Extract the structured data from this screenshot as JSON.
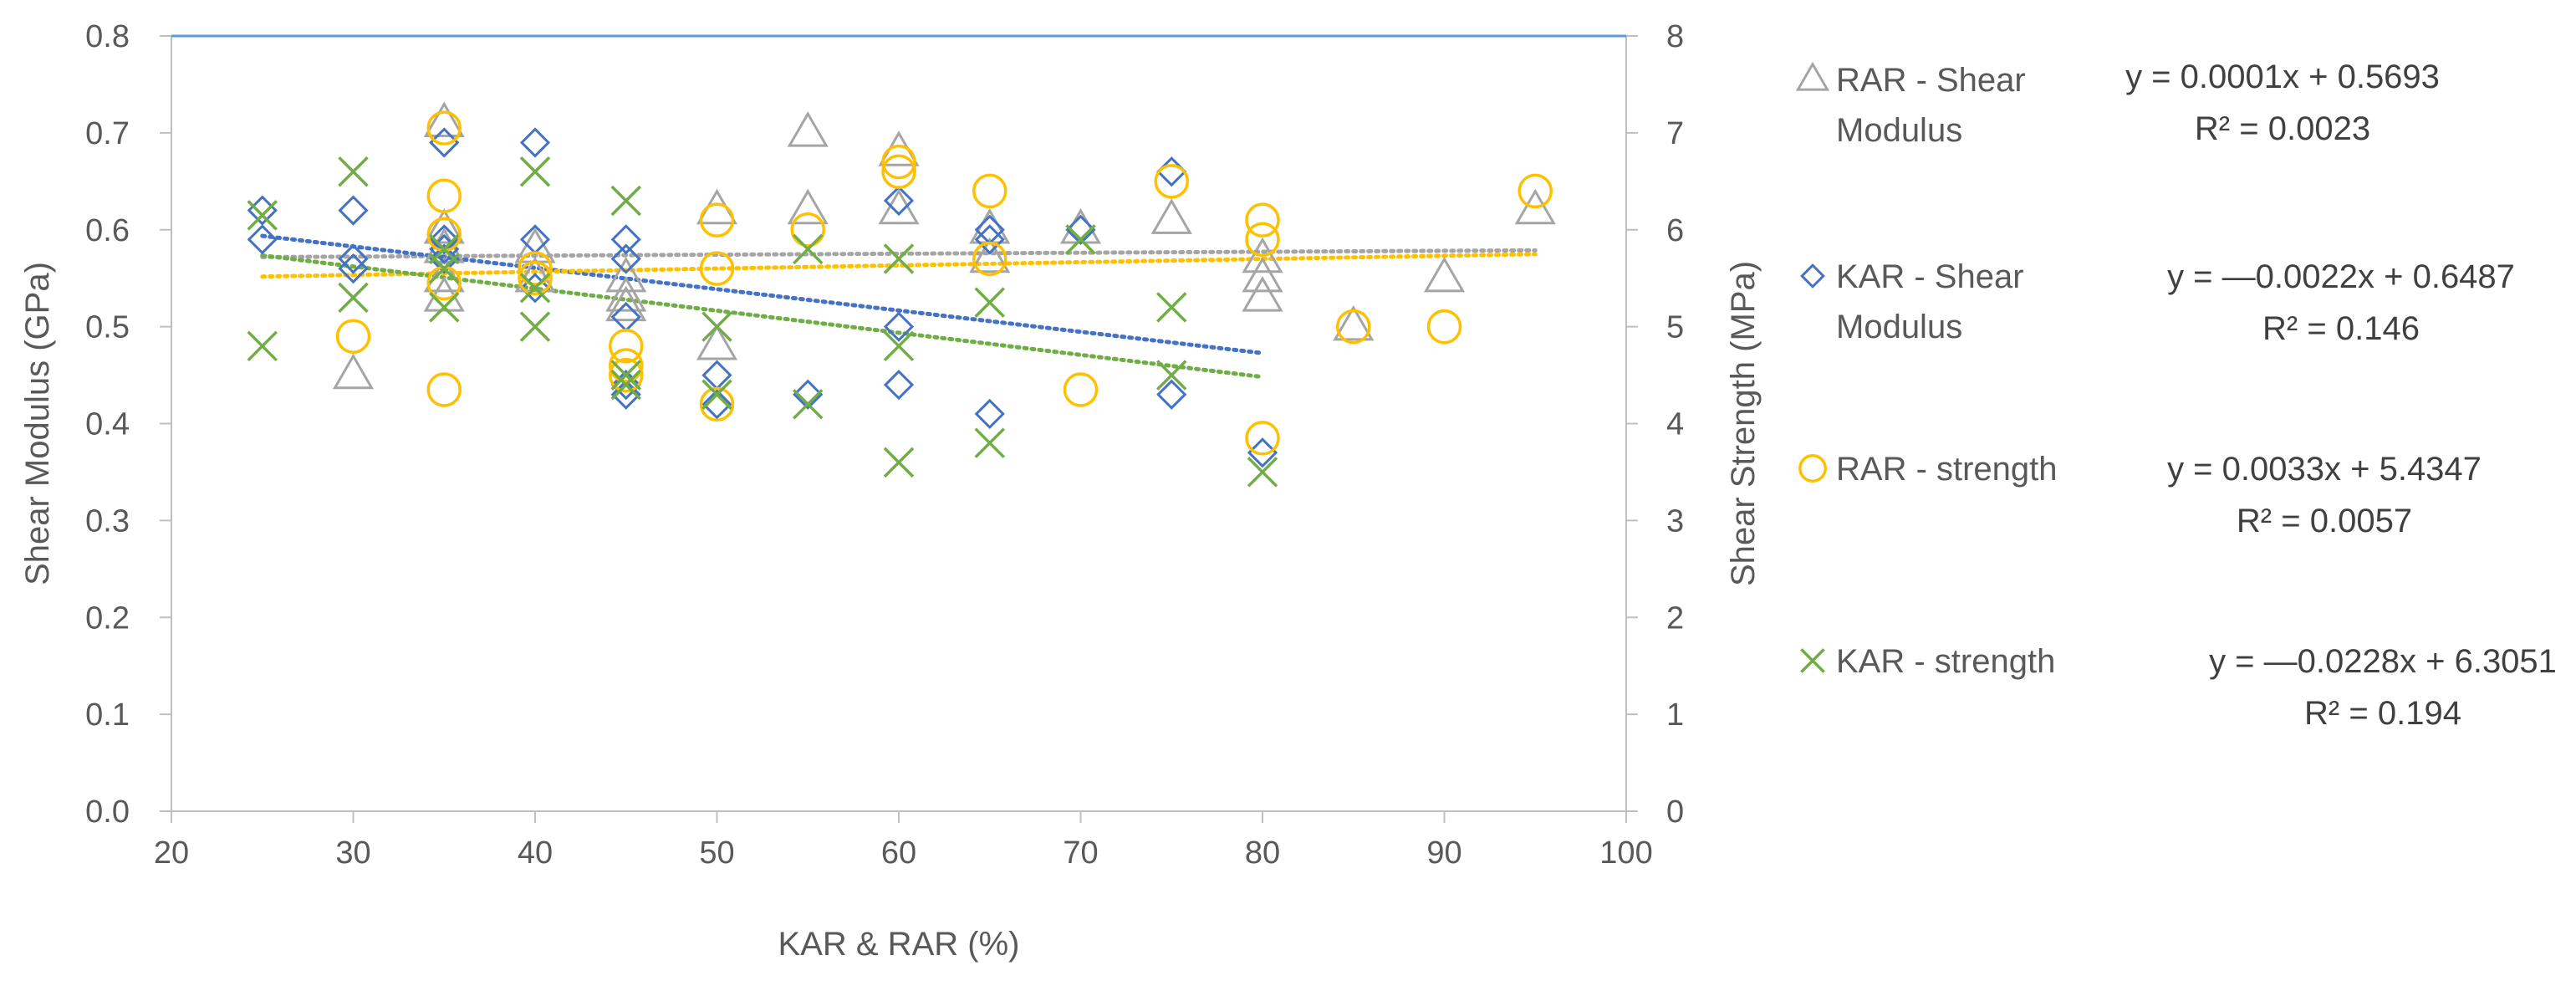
{
  "chart_data": {
    "type": "scatter",
    "xlabel": "KAR & RAR (%)",
    "ylabel_left": "Shear Modulus (GPa)",
    "ylabel_right": "Shear Strength (MPa)",
    "xlim": [
      20,
      100
    ],
    "ylim_left": [
      0,
      0.8
    ],
    "ylim_right": [
      0,
      8
    ],
    "x_ticks": [
      "20",
      "30",
      "40",
      "50",
      "60",
      "70",
      "80",
      "90",
      "100"
    ],
    "y_ticks_left": [
      "0.0",
      "0.1",
      "0.2",
      "0.3",
      "0.4",
      "0.5",
      "0.6",
      "0.7",
      "0.8"
    ],
    "y_ticks_right": [
      "0",
      "1",
      "2",
      "3",
      "4",
      "5",
      "6",
      "7",
      "8"
    ],
    "grid": false,
    "legend_position": "right",
    "series": [
      {
        "name_line1": "RAR - Shear",
        "name_line2": "Modulus",
        "axis": "left",
        "marker": "triangle",
        "color": "#A5A5A5",
        "trend_color": "#A5A5A5",
        "equation": "y = 0.0001x + 0.5693",
        "r2": "R² = 0.0023",
        "trend": {
          "slope": 0.0001,
          "intercept": 0.5693,
          "x_range": [
            25,
            95
          ]
        },
        "points": [
          [
            30,
            0.45
          ],
          [
            35,
            0.71
          ],
          [
            35,
            0.6
          ],
          [
            35,
            0.58
          ],
          [
            35,
            0.55
          ],
          [
            35,
            0.53
          ],
          [
            40,
            0.58
          ],
          [
            40,
            0.55
          ],
          [
            45,
            0.55
          ],
          [
            45,
            0.53
          ],
          [
            45,
            0.52
          ],
          [
            50,
            0.62
          ],
          [
            50,
            0.48
          ],
          [
            55,
            0.7
          ],
          [
            55,
            0.62
          ],
          [
            60,
            0.68
          ],
          [
            60,
            0.62
          ],
          [
            65,
            0.6
          ],
          [
            65,
            0.57
          ],
          [
            70,
            0.6
          ],
          [
            75,
            0.61
          ],
          [
            80,
            0.57
          ],
          [
            80,
            0.55
          ],
          [
            80,
            0.53
          ],
          [
            85,
            0.5
          ],
          [
            90,
            0.55
          ],
          [
            95,
            0.62
          ]
        ]
      },
      {
        "name_line1": "KAR - Shear",
        "name_line2": "Modulus",
        "axis": "left",
        "marker": "diamond",
        "color": "#4472C4",
        "trend_color": "#4472C4",
        "equation": "y = —0.0022x + 0.6487",
        "r2": "R² = 0.146",
        "trend": {
          "slope": -0.0022,
          "intercept": 0.6487,
          "x_range": [
            25,
            80
          ]
        },
        "points": [
          [
            25,
            0.62
          ],
          [
            25,
            0.59
          ],
          [
            30,
            0.62
          ],
          [
            30,
            0.57
          ],
          [
            30,
            0.56
          ],
          [
            35,
            0.69
          ],
          [
            35,
            0.59
          ],
          [
            35,
            0.58
          ],
          [
            35,
            0.57
          ],
          [
            40,
            0.69
          ],
          [
            40,
            0.59
          ],
          [
            40,
            0.54
          ],
          [
            45,
            0.59
          ],
          [
            45,
            0.57
          ],
          [
            45,
            0.51
          ],
          [
            45,
            0.44
          ],
          [
            45,
            0.43
          ],
          [
            50,
            0.45
          ],
          [
            50,
            0.42
          ],
          [
            55,
            0.43
          ],
          [
            60,
            0.63
          ],
          [
            60,
            0.5
          ],
          [
            60,
            0.44
          ],
          [
            65,
            0.6
          ],
          [
            65,
            0.59
          ],
          [
            65,
            0.41
          ],
          [
            70,
            0.6
          ],
          [
            75,
            0.66
          ],
          [
            75,
            0.43
          ],
          [
            80,
            0.37
          ]
        ]
      },
      {
        "name_line1": "RAR - strength",
        "name_line2": "",
        "axis": "right",
        "marker": "circle",
        "color": "#FFC000",
        "trend_color": "#FFC000",
        "equation": "y = 0.0033x + 5.4347",
        "r2": "R² = 0.0057",
        "trend": {
          "slope": 0.0033,
          "intercept": 5.4347,
          "x_range": [
            25,
            95
          ]
        },
        "points": [
          [
            30,
            4.9
          ],
          [
            35,
            7.05
          ],
          [
            35,
            6.35
          ],
          [
            35,
            5.95
          ],
          [
            35,
            5.45
          ],
          [
            35,
            4.35
          ],
          [
            40,
            5.6
          ],
          [
            40,
            5.5
          ],
          [
            45,
            4.8
          ],
          [
            45,
            4.6
          ],
          [
            45,
            4.5
          ],
          [
            50,
            6.1
          ],
          [
            50,
            5.6
          ],
          [
            50,
            4.2
          ],
          [
            55,
            6.0
          ],
          [
            60,
            6.7
          ],
          [
            60,
            6.6
          ],
          [
            65,
            6.4
          ],
          [
            65,
            5.7
          ],
          [
            70,
            4.35
          ],
          [
            75,
            6.5
          ],
          [
            80,
            6.1
          ],
          [
            80,
            5.9
          ],
          [
            80,
            3.85
          ],
          [
            85,
            5.0
          ],
          [
            90,
            5.0
          ],
          [
            95,
            6.4
          ]
        ]
      },
      {
        "name_line1": "KAR - strength",
        "name_line2": "",
        "axis": "right",
        "marker": "x",
        "color": "#70AD47",
        "trend_color": "#70AD47",
        "equation": "y = —0.0228x + 6.3051",
        "r2": "R² = 0.194",
        "trend": {
          "slope": -0.0228,
          "intercept": 6.3051,
          "x_range": [
            25,
            80
          ]
        },
        "points": [
          [
            25,
            6.15
          ],
          [
            25,
            4.8
          ],
          [
            30,
            6.6
          ],
          [
            30,
            5.3
          ],
          [
            35,
            5.8
          ],
          [
            35,
            5.6
          ],
          [
            35,
            5.2
          ],
          [
            40,
            6.6
          ],
          [
            40,
            5.4
          ],
          [
            40,
            5.0
          ],
          [
            45,
            6.3
          ],
          [
            45,
            4.5
          ],
          [
            45,
            4.4
          ],
          [
            50,
            5.0
          ],
          [
            50,
            4.3
          ],
          [
            55,
            5.8
          ],
          [
            55,
            4.2
          ],
          [
            60,
            5.7
          ],
          [
            60,
            4.8
          ],
          [
            60,
            3.6
          ],
          [
            65,
            5.25
          ],
          [
            65,
            3.8
          ],
          [
            70,
            5.9
          ],
          [
            75,
            5.2
          ],
          [
            75,
            4.5
          ],
          [
            80,
            3.5
          ]
        ]
      }
    ]
  }
}
